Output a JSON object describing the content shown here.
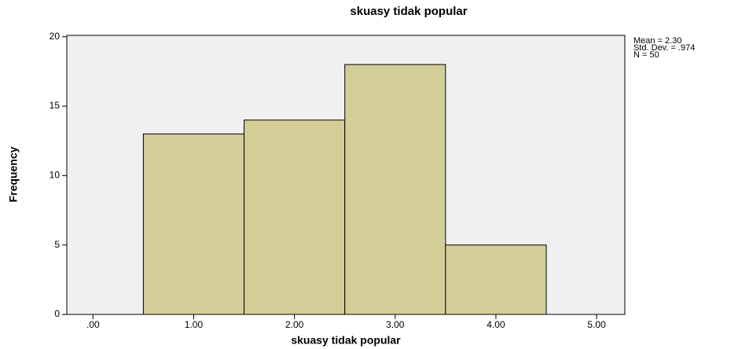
{
  "chart_data": {
    "type": "histogram",
    "title": "skuasy tidak popular",
    "xlabel": "skuasy tidak popular",
    "ylabel": "Frequency",
    "bins": [
      0.5,
      1.5,
      2.5,
      3.5,
      4.5
    ],
    "counts": [
      13,
      14,
      18,
      5
    ],
    "color": "#d3ce98",
    "edgecolor": "#000000",
    "background": "#f0f0f0",
    "xlim": [
      -0.26,
      5.28
    ],
    "ylim": [
      0,
      20.1
    ],
    "xticks": [
      {
        "value": 0,
        "label": ".00"
      },
      {
        "value": 1,
        "label": "1.00"
      },
      {
        "value": 2,
        "label": "2.00"
      },
      {
        "value": 3,
        "label": "3.00"
      },
      {
        "value": 4,
        "label": "4.00"
      },
      {
        "value": 5,
        "label": "5.00"
      }
    ],
    "yticks": [
      0,
      5,
      10,
      15,
      20
    ],
    "annotations": [
      "Mean = 2.30",
      "Std. Dev. = .974",
      "N = 50"
    ]
  }
}
